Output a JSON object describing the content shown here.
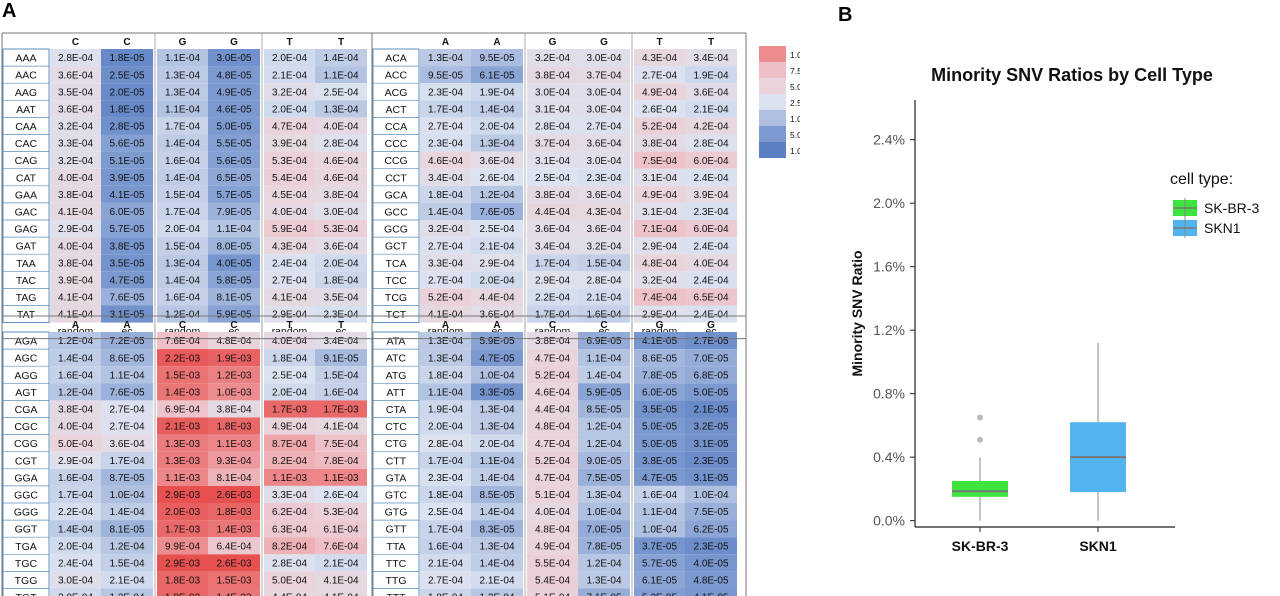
{
  "panels": {
    "a": "A",
    "b": "B"
  },
  "heatmap": {
    "legend": {
      "labels": [
        "1.0E-03",
        "7.5E-04",
        "5.0E-04",
        "2.5E-04",
        "1.0E-04",
        "5.0E-05",
        "1.0E-05"
      ],
      "colors": [
        "#ec8c8e",
        "#eebfc6",
        "#ead3da",
        "#dbe3f1",
        "#aebfe0",
        "#7d9ad0",
        "#5a7fc3"
      ]
    },
    "footer": [
      "random",
      "ec"
    ],
    "blocks": [
      {
        "headers": [
          "C",
          "C"
        ],
        "rows": [
          "AAA",
          "AAC",
          "AAG",
          "AAT",
          "CAA",
          "CAC",
          "CAG",
          "CAT",
          "GAA",
          "GAC",
          "GAG",
          "GAT",
          "TAA",
          "TAC",
          "TAG",
          "TAT"
        ],
        "values": [
          [
            "2.8E-04",
            "1.8E-05"
          ],
          [
            "3.6E-04",
            "2.5E-05"
          ],
          [
            "3.5E-04",
            "2.0E-05"
          ],
          [
            "3.6E-04",
            "1.8E-05"
          ],
          [
            "3.2E-04",
            "2.8E-05"
          ],
          [
            "3.3E-04",
            "5.6E-05"
          ],
          [
            "3.2E-04",
            "5.1E-05"
          ],
          [
            "4.0E-04",
            "3.9E-05"
          ],
          [
            "3.8E-04",
            "4.1E-05"
          ],
          [
            "4.1E-04",
            "6.0E-05"
          ],
          [
            "2.9E-04",
            "5.7E-05"
          ],
          [
            "4.0E-04",
            "3.8E-05"
          ],
          [
            "3.8E-04",
            "3.5E-05"
          ],
          [
            "3.9E-04",
            "4.7E-05"
          ],
          [
            "4.1E-04",
            "7.6E-05"
          ],
          [
            "4.1E-04",
            "3.1E-05"
          ]
        ]
      },
      {
        "headers": [
          "G",
          "G"
        ],
        "values": [
          [
            "1.1E-04",
            "3.0E-05"
          ],
          [
            "1.3E-04",
            "4.8E-05"
          ],
          [
            "1.3E-04",
            "4.9E-05"
          ],
          [
            "1.1E-04",
            "4.6E-05"
          ],
          [
            "1.7E-04",
            "5.0E-05"
          ],
          [
            "1.4E-04",
            "5.5E-05"
          ],
          [
            "1.6E-04",
            "5.6E-05"
          ],
          [
            "1.4E-04",
            "6.5E-05"
          ],
          [
            "1.5E-04",
            "5.7E-05"
          ],
          [
            "1.7E-04",
            "7.9E-05"
          ],
          [
            "2.0E-04",
            "1.1E-04"
          ],
          [
            "1.5E-04",
            "8.0E-05"
          ],
          [
            "1.3E-04",
            "4.0E-05"
          ],
          [
            "1.4E-04",
            "5.8E-05"
          ],
          [
            "1.6E-04",
            "8.1E-05"
          ],
          [
            "1.2E-04",
            "5.9E-05"
          ]
        ]
      },
      {
        "headers": [
          "T",
          "T"
        ],
        "values": [
          [
            "2.0E-04",
            "1.4E-04"
          ],
          [
            "2.1E-04",
            "1.1E-04"
          ],
          [
            "3.2E-04",
            "2.5E-04"
          ],
          [
            "2.0E-04",
            "1.3E-04"
          ],
          [
            "4.7E-04",
            "4.0E-04"
          ],
          [
            "3.9E-04",
            "2.8E-04"
          ],
          [
            "5.3E-04",
            "4.6E-04"
          ],
          [
            "5.4E-04",
            "4.6E-04"
          ],
          [
            "4.5E-04",
            "3.8E-04"
          ],
          [
            "4.0E-04",
            "3.0E-04"
          ],
          [
            "5.9E-04",
            "5.3E-04"
          ],
          [
            "4.3E-04",
            "3.6E-04"
          ],
          [
            "2.4E-04",
            "2.0E-04"
          ],
          [
            "2.7E-04",
            "1.8E-04"
          ],
          [
            "4.1E-04",
            "3.5E-04"
          ],
          [
            "2.9E-04",
            "2.3E-04"
          ]
        ]
      },
      {
        "headers": [
          "A",
          "A"
        ],
        "rows": [
          "ACA",
          "ACC",
          "ACG",
          "ACT",
          "CCA",
          "CCC",
          "CCG",
          "CCT",
          "GCA",
          "GCC",
          "GCG",
          "GCT",
          "TCA",
          "TCC",
          "TCG",
          "TCT"
        ],
        "values": [
          [
            "1.3E-04",
            "9.5E-05"
          ],
          [
            "9.5E-05",
            "6.1E-05"
          ],
          [
            "2.3E-04",
            "1.9E-04"
          ],
          [
            "1.7E-04",
            "1.4E-04"
          ],
          [
            "2.7E-04",
            "2.0E-04"
          ],
          [
            "2.3E-04",
            "1.3E-04"
          ],
          [
            "4.6E-04",
            "3.6E-04"
          ],
          [
            "3.4E-04",
            "2.6E-04"
          ],
          [
            "1.8E-04",
            "1.2E-04"
          ],
          [
            "1.4E-04",
            "7.6E-05"
          ],
          [
            "3.2E-04",
            "2.5E-04"
          ],
          [
            "2.7E-04",
            "2.1E-04"
          ],
          [
            "3.3E-04",
            "2.9E-04"
          ],
          [
            "2.7E-04",
            "2.0E-04"
          ],
          [
            "5.2E-04",
            "4.4E-04"
          ],
          [
            "4.1E-04",
            "3.6E-04"
          ]
        ]
      },
      {
        "headers": [
          "G",
          "G"
        ],
        "values": [
          [
            "3.2E-04",
            "3.0E-04"
          ],
          [
            "3.8E-04",
            "3.7E-04"
          ],
          [
            "3.0E-04",
            "3.0E-04"
          ],
          [
            "3.1E-04",
            "3.0E-04"
          ],
          [
            "2.8E-04",
            "2.7E-04"
          ],
          [
            "3.7E-04",
            "3.6E-04"
          ],
          [
            "3.1E-04",
            "3.0E-04"
          ],
          [
            "2.5E-04",
            "2.3E-04"
          ],
          [
            "3.8E-04",
            "3.6E-04"
          ],
          [
            "4.4E-04",
            "4.3E-04"
          ],
          [
            "3.6E-04",
            "3.6E-04"
          ],
          [
            "3.4E-04",
            "3.2E-04"
          ],
          [
            "1.7E-04",
            "1.5E-04"
          ],
          [
            "2.9E-04",
            "2.8E-04"
          ],
          [
            "2.2E-04",
            "2.1E-04"
          ],
          [
            "1.7E-04",
            "1.6E-04"
          ]
        ]
      },
      {
        "headers": [
          "T",
          "T"
        ],
        "values": [
          [
            "4.3E-04",
            "3.4E-04"
          ],
          [
            "2.7E-04",
            "1.9E-04"
          ],
          [
            "4.9E-04",
            "3.6E-04"
          ],
          [
            "2.6E-04",
            "2.1E-04"
          ],
          [
            "5.2E-04",
            "4.2E-04"
          ],
          [
            "3.8E-04",
            "2.8E-04"
          ],
          [
            "7.5E-04",
            "6.0E-04"
          ],
          [
            "3.1E-04",
            "2.4E-04"
          ],
          [
            "4.9E-04",
            "3.9E-04"
          ],
          [
            "3.1E-04",
            "2.3E-04"
          ],
          [
            "7.1E-04",
            "6.0E-04"
          ],
          [
            "2.9E-04",
            "2.4E-04"
          ],
          [
            "4.8E-04",
            "4.0E-04"
          ],
          [
            "3.2E-04",
            "2.4E-04"
          ],
          [
            "7.4E-04",
            "6.5E-04"
          ],
          [
            "2.9E-04",
            "2.4E-04"
          ]
        ]
      },
      {
        "headers": [
          "A",
          "A"
        ],
        "rows": [
          "AGA",
          "AGC",
          "AGG",
          "AGT",
          "CGA",
          "CGC",
          "CGG",
          "CGT",
          "GGA",
          "GGC",
          "GGG",
          "GGT",
          "TGA",
          "TGC",
          "TGG",
          "TGT"
        ],
        "values": [
          [
            "1.2E-04",
            "7.2E-05"
          ],
          [
            "1.4E-04",
            "8.6E-05"
          ],
          [
            "1.6E-04",
            "1.1E-04"
          ],
          [
            "1.2E-04",
            "7.6E-05"
          ],
          [
            "3.8E-04",
            "2.7E-04"
          ],
          [
            "4.0E-04",
            "2.7E-04"
          ],
          [
            "5.0E-04",
            "3.6E-04"
          ],
          [
            "2.9E-04",
            "1.7E-04"
          ],
          [
            "1.6E-04",
            "8.7E-05"
          ],
          [
            "1.7E-04",
            "1.0E-04"
          ],
          [
            "2.2E-04",
            "1.4E-04"
          ],
          [
            "1.4E-04",
            "8.1E-05"
          ],
          [
            "2.0E-04",
            "1.2E-04"
          ],
          [
            "2.4E-04",
            "1.5E-04"
          ],
          [
            "3.0E-04",
            "2.1E-04"
          ],
          [
            "2.0E-04",
            "1.2E-04"
          ]
        ]
      },
      {
        "headers": [
          "C",
          "C"
        ],
        "values": [
          [
            "7.6E-04",
            "4.8E-04"
          ],
          [
            "2.2E-03",
            "1.9E-03"
          ],
          [
            "1.5E-03",
            "1.2E-03"
          ],
          [
            "1.4E-03",
            "1.0E-03"
          ],
          [
            "6.9E-04",
            "3.8E-04"
          ],
          [
            "2.1E-03",
            "1.8E-03"
          ],
          [
            "1.3E-03",
            "1.1E-03"
          ],
          [
            "1.3E-03",
            "9.3E-04"
          ],
          [
            "1.1E-03",
            "8.1E-04"
          ],
          [
            "2.9E-03",
            "2.6E-03"
          ],
          [
            "2.0E-03",
            "1.8E-03"
          ],
          [
            "1.7E-03",
            "1.4E-03"
          ],
          [
            "9.9E-04",
            "6.4E-04"
          ],
          [
            "2.9E-03",
            "2.6E-03"
          ],
          [
            "1.8E-03",
            "1.5E-03"
          ],
          [
            "1.8E-03",
            "1.4E-03"
          ]
        ]
      },
      {
        "headers": [
          "T",
          "T"
        ],
        "values": [
          [
            "4.0E-04",
            "3.4E-04"
          ],
          [
            "1.8E-04",
            "9.1E-05"
          ],
          [
            "2.5E-04",
            "1.5E-04"
          ],
          [
            "2.0E-04",
            "1.6E-04"
          ],
          [
            "1.7E-03",
            "1.7E-03"
          ],
          [
            "4.9E-04",
            "4.1E-04"
          ],
          [
            "8.7E-04",
            "7.5E-04"
          ],
          [
            "8.2E-04",
            "7.8E-04"
          ],
          [
            "1.1E-03",
            "1.1E-03"
          ],
          [
            "3.3E-04",
            "2.6E-04"
          ],
          [
            "6.2E-04",
            "5.3E-04"
          ],
          [
            "6.3E-04",
            "6.1E-04"
          ],
          [
            "8.2E-04",
            "7.6E-04"
          ],
          [
            "2.8E-04",
            "2.1E-04"
          ],
          [
            "5.0E-04",
            "4.1E-04"
          ],
          [
            "4.4E-04",
            "4.1E-04"
          ]
        ]
      },
      {
        "headers": [
          "A",
          "A"
        ],
        "rows": [
          "ATA",
          "ATC",
          "ATG",
          "ATT",
          "CTA",
          "CTC",
          "CTG",
          "CTT",
          "GTA",
          "GTC",
          "GTG",
          "GTT",
          "TTA",
          "TTC",
          "TTG",
          "TTT"
        ],
        "values": [
          [
            "1.3E-04",
            "5.9E-05"
          ],
          [
            "1.3E-04",
            "4.7E-05"
          ],
          [
            "1.8E-04",
            "1.0E-04"
          ],
          [
            "1.1E-04",
            "3.3E-05"
          ],
          [
            "1.9E-04",
            "1.3E-04"
          ],
          [
            "2.0E-04",
            "1.3E-04"
          ],
          [
            "2.8E-04",
            "2.0E-04"
          ],
          [
            "1.7E-04",
            "1.1E-04"
          ],
          [
            "2.3E-04",
            "1.4E-04"
          ],
          [
            "1.8E-04",
            "8.5E-05"
          ],
          [
            "2.5E-04",
            "1.4E-04"
          ],
          [
            "1.7E-04",
            "8.3E-05"
          ],
          [
            "1.6E-04",
            "1.3E-04"
          ],
          [
            "2.1E-04",
            "1.4E-04"
          ],
          [
            "2.7E-04",
            "2.1E-04"
          ],
          [
            "1.8E-04",
            "1.2E-04"
          ]
        ]
      },
      {
        "headers": [
          "C",
          "C"
        ],
        "values": [
          [
            "3.8E-04",
            "6.9E-05"
          ],
          [
            "4.7E-04",
            "1.1E-04"
          ],
          [
            "5.2E-04",
            "1.4E-04"
          ],
          [
            "4.6E-04",
            "5.9E-05"
          ],
          [
            "4.4E-04",
            "8.5E-05"
          ],
          [
            "4.8E-04",
            "1.2E-04"
          ],
          [
            "4.7E-04",
            "1.2E-04"
          ],
          [
            "5.2E-04",
            "9.0E-05"
          ],
          [
            "4.7E-04",
            "7.5E-05"
          ],
          [
            "5.1E-04",
            "1.3E-04"
          ],
          [
            "4.0E-04",
            "1.0E-04"
          ],
          [
            "4.8E-04",
            "7.0E-05"
          ],
          [
            "4.9E-04",
            "7.8E-05"
          ],
          [
            "5.5E-04",
            "1.2E-04"
          ],
          [
            "5.4E-04",
            "1.3E-04"
          ],
          [
            "5.1E-04",
            "7.1E-05"
          ]
        ]
      },
      {
        "headers": [
          "G",
          "G"
        ],
        "values": [
          [
            "4.1E-05",
            "2.7E-05"
          ],
          [
            "8.6E-05",
            "7.0E-05"
          ],
          [
            "7.8E-05",
            "6.8E-05"
          ],
          [
            "6.0E-05",
            "5.0E-05"
          ],
          [
            "3.5E-05",
            "2.1E-05"
          ],
          [
            "5.0E-05",
            "3.2E-05"
          ],
          [
            "5.0E-05",
            "3.1E-05"
          ],
          [
            "3.8E-05",
            "2.3E-05"
          ],
          [
            "4.7E-05",
            "3.1E-05"
          ],
          [
            "1.6E-04",
            "1.0E-04"
          ],
          [
            "1.1E-04",
            "7.5E-05"
          ],
          [
            "1.0E-04",
            "6.2E-05"
          ],
          [
            "3.7E-05",
            "2.3E-05"
          ],
          [
            "5.7E-05",
            "4.0E-05"
          ],
          [
            "6.1E-05",
            "4.8E-05"
          ],
          [
            "5.3E-05",
            "4.1E-05"
          ]
        ]
      }
    ]
  },
  "chart_data": {
    "type": "box",
    "title": "Minority SNV Ratios by Cell Type",
    "xlabel": "",
    "ylabel": "Minority SNV Ratio",
    "categories": [
      "SK-BR-3",
      "SKN1"
    ],
    "yticks": [
      "0.0%",
      "0.4%",
      "0.8%",
      "1.2%",
      "1.6%",
      "2.0%",
      "2.4%"
    ],
    "ylim": [
      -0.0004,
      0.0265
    ],
    "legend_title": "cell type:",
    "legend_position": "right",
    "series": [
      {
        "name": "SK-BR-3",
        "color": "#3ee43e",
        "min": 0.0,
        "q1": 0.0015,
        "median": 0.00185,
        "q3": 0.0025,
        "max": 0.004,
        "outliers": [
          0.0051,
          0.0065
        ]
      },
      {
        "name": "SKN1",
        "color": "#52b4ee",
        "min": 0.0,
        "q1": 0.0018,
        "median": 0.004,
        "q3": 0.0062,
        "max": 0.0112,
        "outliers": []
      }
    ]
  }
}
